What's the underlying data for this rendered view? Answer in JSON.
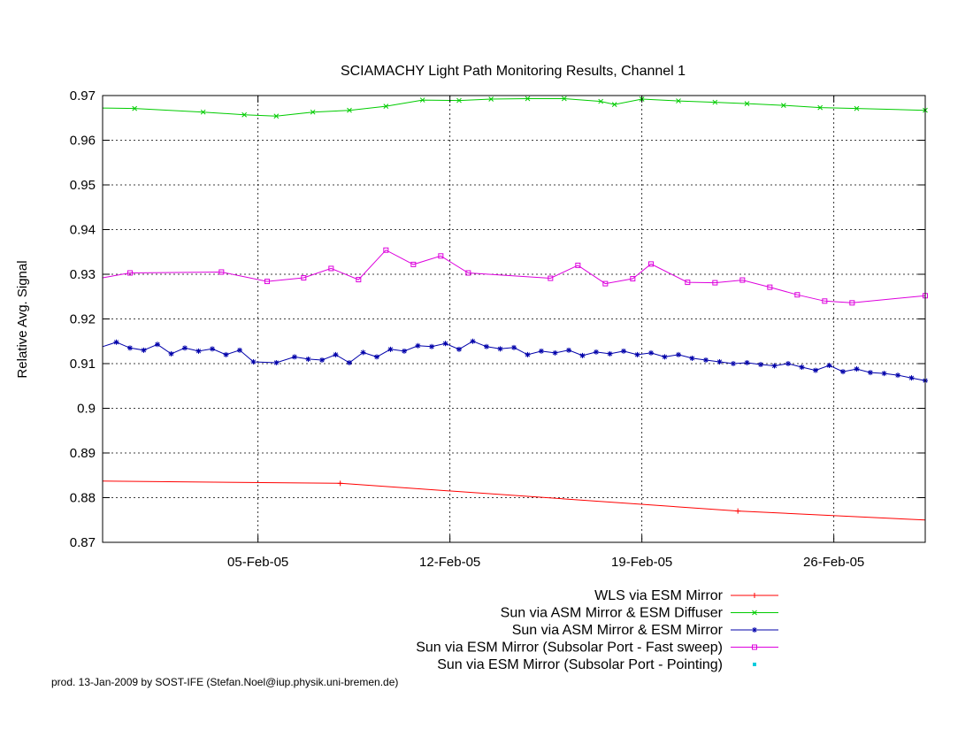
{
  "chart_data": {
    "type": "line",
    "title": "SCIAMACHY Light Path Monitoring Results, Channel 1",
    "ylabel": "Relative Avg. Signal",
    "xlabel": "",
    "x_axis": "date",
    "xlim": [
      "2005-01-30T08:00",
      "2005-03-01T08:00"
    ],
    "ylim": [
      0.87,
      0.97
    ],
    "x_ticks": [
      {
        "date": "2005-02-05",
        "label": "05-Feb-05"
      },
      {
        "date": "2005-02-12",
        "label": "12-Feb-05"
      },
      {
        "date": "2005-02-19",
        "label": "19-Feb-05"
      },
      {
        "date": "2005-02-26",
        "label": "26-Feb-05"
      }
    ],
    "y_ticks": [
      "0.87",
      "0.88",
      "0.89",
      "0.9",
      "0.91",
      "0.92",
      "0.93",
      "0.94",
      "0.95",
      "0.96",
      "0.97"
    ],
    "grid": true,
    "legend_position": "below-right",
    "series": [
      {
        "name": "WLS via ESM Mirror",
        "color": "#ff0000",
        "marker": "plus",
        "x": [
          "2005-01-30T08:00",
          "2005-02-08T00:00",
          "2005-02-22T12:00",
          "2005-03-01T08:00"
        ],
        "y": [
          0.8837,
          0.8832,
          0.877,
          0.875
        ],
        "marker_x": [
          "2005-02-08T00:00",
          "2005-02-22T12:00"
        ]
      },
      {
        "name": "Sun via ASM Mirror & ESM Diffuser",
        "color": "#00cc00",
        "marker": "x",
        "x": [
          "2005-01-30T08:00",
          "2005-01-31T12:00",
          "2005-02-03T00:00",
          "2005-02-04T12:00",
          "2005-02-05T16:00",
          "2005-02-07T00:00",
          "2005-02-08T08:00",
          "2005-02-09T16:00",
          "2005-02-11T00:00",
          "2005-02-12T08:00",
          "2005-02-13T12:00",
          "2005-02-14T20:00",
          "2005-02-16T04:00",
          "2005-02-17T12:00",
          "2005-02-18T00:00",
          "2005-02-19T00:00",
          "2005-02-20T08:00",
          "2005-02-21T16:00",
          "2005-02-22T20:00",
          "2005-02-24T04:00",
          "2005-02-25T12:00",
          "2005-02-26T20:00",
          "2005-03-01T08:00"
        ],
        "y": [
          0.9672,
          0.9671,
          0.9663,
          0.9657,
          0.9654,
          0.9663,
          0.9667,
          0.9676,
          0.969,
          0.9689,
          0.9692,
          0.9693,
          0.9693,
          0.9687,
          0.968,
          0.9692,
          0.9688,
          0.9685,
          0.9682,
          0.9678,
          0.9673,
          0.9671,
          0.9667
        ],
        "marker_x": [
          "2005-01-31T12:00",
          "2005-02-03T00:00",
          "2005-02-04T12:00",
          "2005-02-05T16:00",
          "2005-02-07T00:00",
          "2005-02-08T08:00",
          "2005-02-09T16:00",
          "2005-02-11T00:00",
          "2005-02-12T08:00",
          "2005-02-13T12:00",
          "2005-02-14T20:00",
          "2005-02-16T04:00",
          "2005-02-17T12:00",
          "2005-02-18T00:00",
          "2005-02-19T00:00",
          "2005-02-20T08:00",
          "2005-02-21T16:00",
          "2005-02-22T20:00",
          "2005-02-24T04:00",
          "2005-02-25T12:00",
          "2005-02-26T20:00",
          "2005-03-01T08:00"
        ]
      },
      {
        "name": "Sun via ASM Mirror & ESM Mirror",
        "color": "#0000aa",
        "marker": "star",
        "x": [
          "2005-01-30T08:00",
          "2005-01-30T20:00",
          "2005-01-31T08:00",
          "2005-01-31T20:00",
          "2005-02-01T08:00",
          "2005-02-01T20:00",
          "2005-02-02T08:00",
          "2005-02-02T20:00",
          "2005-02-03T08:00",
          "2005-02-03T20:00",
          "2005-02-04T08:00",
          "2005-02-04T20:00",
          "2005-02-05T16:00",
          "2005-02-06T08:00",
          "2005-02-06T20:00",
          "2005-02-07T08:00",
          "2005-02-07T20:00",
          "2005-02-08T08:00",
          "2005-02-08T20:00",
          "2005-02-09T08:00",
          "2005-02-09T20:00",
          "2005-02-10T08:00",
          "2005-02-10T20:00",
          "2005-02-11T08:00",
          "2005-02-11T20:00",
          "2005-02-12T08:00",
          "2005-02-12T20:00",
          "2005-02-13T08:00",
          "2005-02-13T20:00",
          "2005-02-14T08:00",
          "2005-02-14T20:00",
          "2005-02-15T08:00",
          "2005-02-15T20:00",
          "2005-02-16T08:00",
          "2005-02-16T20:00",
          "2005-02-17T08:00",
          "2005-02-17T20:00",
          "2005-02-18T08:00",
          "2005-02-18T20:00",
          "2005-02-19T08:00",
          "2005-02-19T20:00",
          "2005-02-20T08:00",
          "2005-02-20T20:00",
          "2005-02-21T08:00",
          "2005-02-21T20:00",
          "2005-02-22T08:00",
          "2005-02-22T20:00",
          "2005-02-23T08:00",
          "2005-02-23T20:00",
          "2005-02-24T08:00",
          "2005-02-24T20:00",
          "2005-02-25T08:00",
          "2005-02-25T20:00",
          "2005-02-26T08:00",
          "2005-02-26T20:00",
          "2005-02-27T08:00",
          "2005-02-27T20:00",
          "2005-02-28T08:00",
          "2005-02-28T20:00",
          "2005-03-01T08:00"
        ],
        "y": [
          0.9138,
          0.9148,
          0.9135,
          0.913,
          0.9143,
          0.9122,
          0.9135,
          0.9128,
          0.9133,
          0.912,
          0.913,
          0.9104,
          0.9102,
          0.9115,
          0.911,
          0.9108,
          0.912,
          0.9102,
          0.9125,
          0.9115,
          0.9132,
          0.9128,
          0.914,
          0.9138,
          0.9145,
          0.9132,
          0.915,
          0.9138,
          0.9133,
          0.9136,
          0.912,
          0.9128,
          0.9124,
          0.913,
          0.9118,
          0.9126,
          0.9122,
          0.9128,
          0.912,
          0.9124,
          0.9115,
          0.912,
          0.9112,
          0.9108,
          0.9104,
          0.91,
          0.9102,
          0.9098,
          0.9095,
          0.91,
          0.9092,
          0.9085,
          0.9096,
          0.9082,
          0.9088,
          0.908,
          0.9078,
          0.9074,
          0.9068,
          0.9062
        ],
        "marker_x": [
          "2005-01-30T20:00",
          "2005-01-31T08:00",
          "2005-01-31T20:00",
          "2005-02-01T08:00",
          "2005-02-01T20:00",
          "2005-02-02T08:00",
          "2005-02-02T20:00",
          "2005-02-03T08:00",
          "2005-02-03T20:00",
          "2005-02-04T08:00",
          "2005-02-04T20:00",
          "2005-02-05T16:00",
          "2005-02-06T08:00",
          "2005-02-06T20:00",
          "2005-02-07T08:00",
          "2005-02-07T20:00",
          "2005-02-08T08:00",
          "2005-02-08T20:00",
          "2005-02-09T08:00",
          "2005-02-09T20:00",
          "2005-02-10T08:00",
          "2005-02-10T20:00",
          "2005-02-11T08:00",
          "2005-02-11T20:00",
          "2005-02-12T08:00",
          "2005-02-12T20:00",
          "2005-02-13T08:00",
          "2005-02-13T20:00",
          "2005-02-14T08:00",
          "2005-02-14T20:00",
          "2005-02-15T08:00",
          "2005-02-15T20:00",
          "2005-02-16T08:00",
          "2005-02-16T20:00",
          "2005-02-17T08:00",
          "2005-02-17T20:00",
          "2005-02-18T08:00",
          "2005-02-18T20:00",
          "2005-02-19T08:00",
          "2005-02-19T20:00",
          "2005-02-20T08:00",
          "2005-02-20T20:00",
          "2005-02-21T08:00",
          "2005-02-21T20:00",
          "2005-02-22T08:00",
          "2005-02-22T20:00",
          "2005-02-23T08:00",
          "2005-02-23T20:00",
          "2005-02-24T08:00",
          "2005-02-24T20:00",
          "2005-02-25T08:00",
          "2005-02-25T20:00",
          "2005-02-26T08:00",
          "2005-02-26T20:00",
          "2005-02-27T08:00",
          "2005-02-27T20:00",
          "2005-02-28T08:00",
          "2005-02-28T20:00",
          "2005-03-01T08:00"
        ]
      },
      {
        "name": "Sun via ESM Mirror (Subsolar Port - Fast sweep)",
        "color": "#dd00dd",
        "marker": "square",
        "x": [
          "2005-01-30T08:00",
          "2005-01-31T08:00",
          "2005-02-03T16:00",
          "2005-02-05T08:00",
          "2005-02-06T16:00",
          "2005-02-07T16:00",
          "2005-02-08T16:00",
          "2005-02-09T16:00",
          "2005-02-10T16:00",
          "2005-02-11T16:00",
          "2005-02-12T16:00",
          "2005-02-15T16:00",
          "2005-02-16T16:00",
          "2005-02-17T16:00",
          "2005-02-18T16:00",
          "2005-02-19T08:00",
          "2005-02-20T16:00",
          "2005-02-21T16:00",
          "2005-02-22T16:00",
          "2005-02-23T16:00",
          "2005-02-24T16:00",
          "2005-02-25T16:00",
          "2005-02-26T16:00",
          "2005-03-01T08:00"
        ],
        "y": [
          0.9292,
          0.9303,
          0.9305,
          0.9284,
          0.9292,
          0.9313,
          0.9288,
          0.9354,
          0.9322,
          0.9341,
          0.9303,
          0.9291,
          0.932,
          0.9279,
          0.929,
          0.9323,
          0.9282,
          0.9281,
          0.9287,
          0.9271,
          0.9254,
          0.924,
          0.9236,
          0.9252
        ],
        "marker_x": [
          "2005-01-31T08:00",
          "2005-02-03T16:00",
          "2005-02-05T08:00",
          "2005-02-06T16:00",
          "2005-02-07T16:00",
          "2005-02-08T16:00",
          "2005-02-09T16:00",
          "2005-02-10T16:00",
          "2005-02-11T16:00",
          "2005-02-12T16:00",
          "2005-02-15T16:00",
          "2005-02-16T16:00",
          "2005-02-17T16:00",
          "2005-02-18T16:00",
          "2005-02-19T08:00",
          "2005-02-20T16:00",
          "2005-02-21T16:00",
          "2005-02-22T16:00",
          "2005-02-23T16:00",
          "2005-02-24T16:00",
          "2005-02-25T16:00",
          "2005-02-26T16:00",
          "2005-03-01T08:00"
        ]
      },
      {
        "name": "Sun via ESM Mirror (Subsolar Port - Pointing)",
        "color": "#00ccdd",
        "marker": "dot",
        "x": [],
        "y": [],
        "marker_x": []
      }
    ]
  },
  "footer": {
    "credit": "prod. 13-Jan-2009 by SOST-IFE (Stefan.Noel@iup.physik.uni-bremen.de)"
  }
}
